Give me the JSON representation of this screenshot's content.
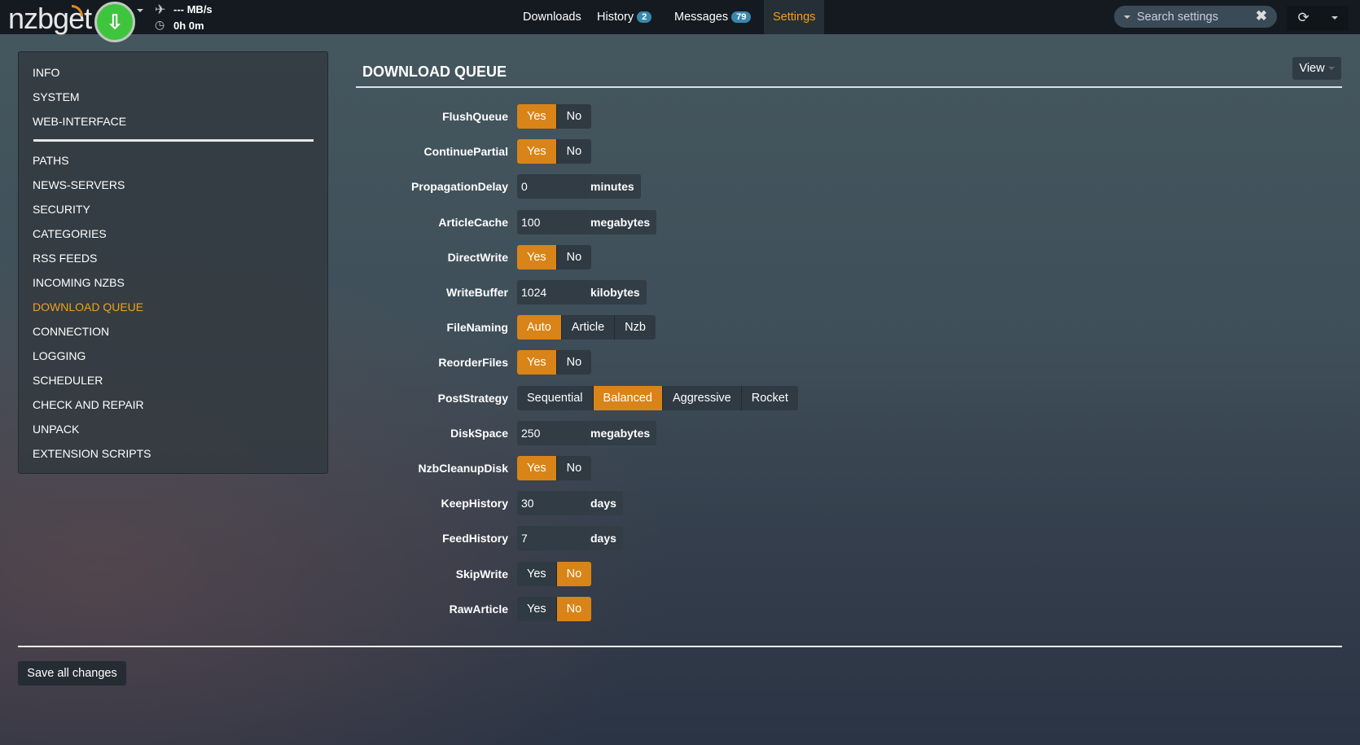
{
  "header": {
    "logo": "nzbget",
    "speed": "--- MB/s",
    "time": "0h 0m",
    "nav": [
      {
        "label": "Downloads"
      },
      {
        "label": "History",
        "badge": "2"
      },
      {
        "label": "Messages",
        "badge": "79"
      },
      {
        "label": "Settings",
        "active": true
      }
    ],
    "search_placeholder": "Search settings"
  },
  "colors": {
    "accent": "#d98418",
    "active_nav": "#f0a020",
    "badge": "#3a87ad",
    "status_button": "#3fc53d"
  },
  "sidebar": {
    "top": [
      "INFO",
      "SYSTEM",
      "WEB-INTERFACE"
    ],
    "items": [
      "PATHS",
      "NEWS-SERVERS",
      "SECURITY",
      "CATEGORIES",
      "RSS FEEDS",
      "INCOMING NZBS",
      "DOWNLOAD QUEUE",
      "CONNECTION",
      "LOGGING",
      "SCHEDULER",
      "CHECK AND REPAIR",
      "UNPACK",
      "EXTENSION SCRIPTS"
    ],
    "active": "DOWNLOAD QUEUE"
  },
  "section": {
    "title": "DOWNLOAD QUEUE",
    "view_label": "View"
  },
  "options": [
    {
      "name": "FlushQueue",
      "type": "switch",
      "choices": [
        "Yes",
        "No"
      ],
      "value": "Yes"
    },
    {
      "name": "ContinuePartial",
      "type": "switch",
      "choices": [
        "Yes",
        "No"
      ],
      "value": "Yes"
    },
    {
      "name": "PropagationDelay",
      "type": "number",
      "value": "0",
      "unit": "minutes"
    },
    {
      "name": "ArticleCache",
      "type": "number",
      "value": "100",
      "unit": "megabytes"
    },
    {
      "name": "DirectWrite",
      "type": "switch",
      "choices": [
        "Yes",
        "No"
      ],
      "value": "Yes"
    },
    {
      "name": "WriteBuffer",
      "type": "number",
      "value": "1024",
      "unit": "kilobytes"
    },
    {
      "name": "FileNaming",
      "type": "switch",
      "choices": [
        "Auto",
        "Article",
        "Nzb"
      ],
      "value": "Auto"
    },
    {
      "name": "ReorderFiles",
      "type": "switch",
      "choices": [
        "Yes",
        "No"
      ],
      "value": "Yes"
    },
    {
      "name": "PostStrategy",
      "type": "switch",
      "choices": [
        "Sequential",
        "Balanced",
        "Aggressive",
        "Rocket"
      ],
      "value": "Balanced"
    },
    {
      "name": "DiskSpace",
      "type": "number",
      "value": "250",
      "unit": "megabytes"
    },
    {
      "name": "NzbCleanupDisk",
      "type": "switch",
      "choices": [
        "Yes",
        "No"
      ],
      "value": "Yes"
    },
    {
      "name": "KeepHistory",
      "type": "number",
      "value": "30",
      "unit": "days"
    },
    {
      "name": "FeedHistory",
      "type": "number",
      "value": "7",
      "unit": "days"
    },
    {
      "name": "SkipWrite",
      "type": "switch",
      "choices": [
        "Yes",
        "No"
      ],
      "value": "No"
    },
    {
      "name": "RawArticle",
      "type": "switch",
      "choices": [
        "Yes",
        "No"
      ],
      "value": "No"
    }
  ],
  "footer": {
    "save_label": "Save all changes"
  }
}
